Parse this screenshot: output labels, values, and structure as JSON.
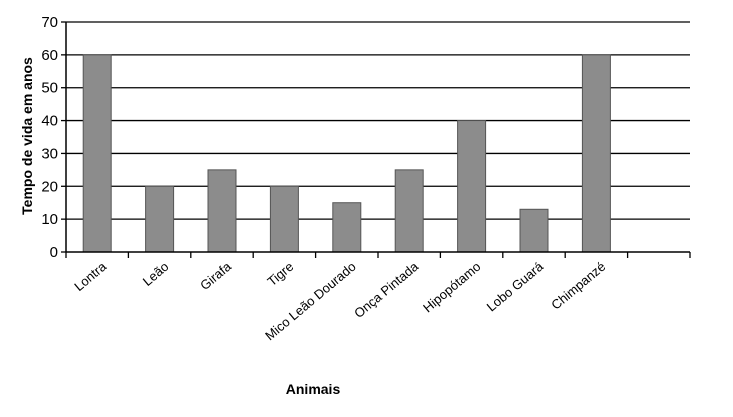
{
  "chart_data": {
    "type": "bar",
    "title": "",
    "xlabel": "Animais",
    "ylabel": "Tempo de vida em anos",
    "categories": [
      "Lontra",
      "Leão",
      "Girafa",
      "Tigre",
      "Mico Leão Dourado",
      "Onça Pintada",
      "Hipopótamo",
      "Lobo Guará",
      "Chimpanzé",
      ""
    ],
    "values": [
      60,
      20,
      25,
      20,
      15,
      25,
      40,
      13,
      60,
      null
    ],
    "ylim": [
      0,
      70
    ],
    "yticks": [
      "0",
      "10",
      "20",
      "30",
      "40",
      "50",
      "60",
      "70"
    ],
    "grid": true,
    "legend": "none",
    "colors": {
      "bar": "#8c8c8c",
      "bar_stroke": "#555555",
      "grid": "#000000",
      "axis": "#000000"
    }
  }
}
